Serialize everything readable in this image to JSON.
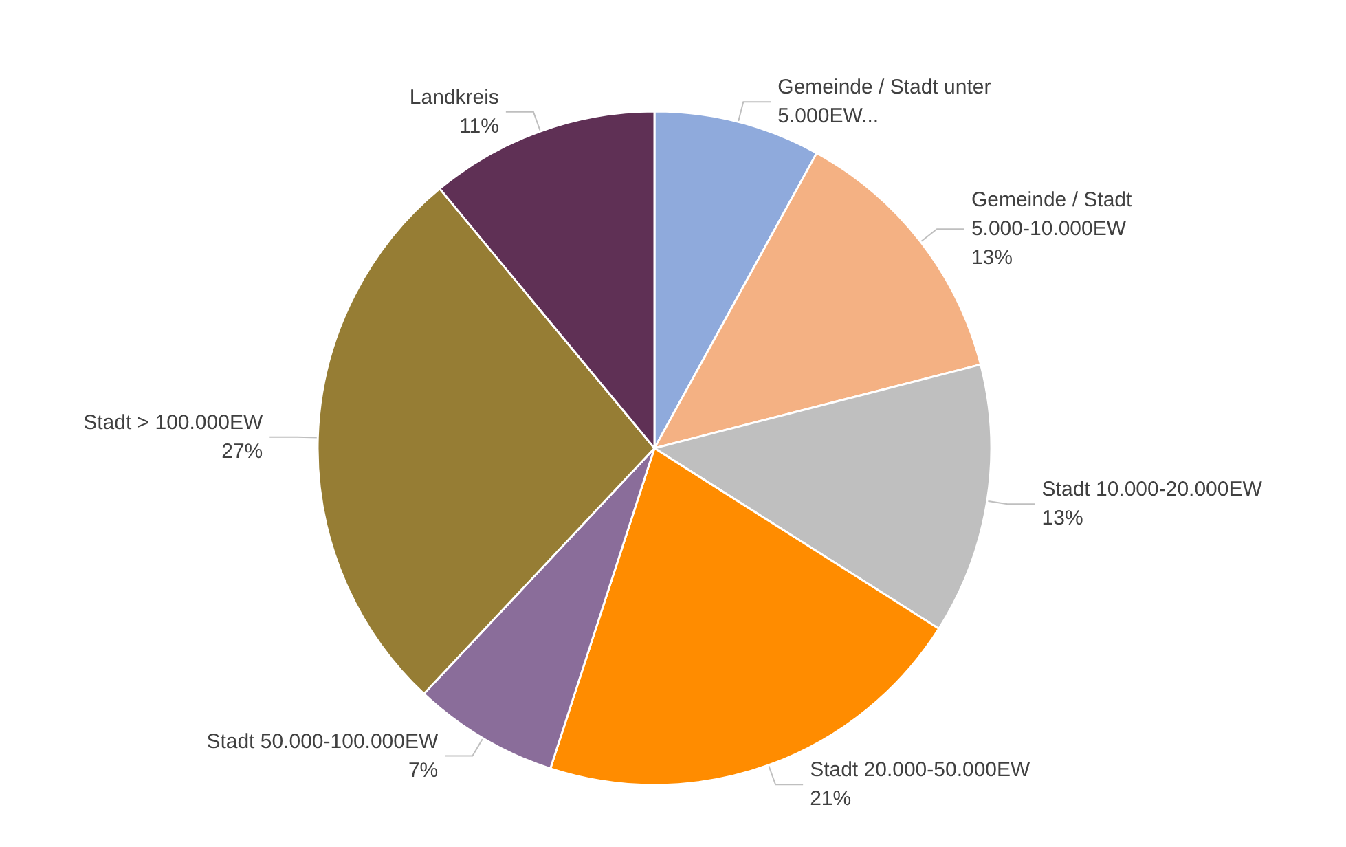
{
  "chart_data": {
    "type": "pie",
    "categories": [
      "Gemeinde / Stadt unter 5.000EW...",
      "Gemeinde / Stadt 5.000-10.000EW",
      "Stadt 10.000-20.000EW",
      "Stadt 20.000-50.000EW",
      "Stadt 50.000-100.000EW",
      "Stadt > 100.000EW",
      "Landkreis"
    ],
    "values": [
      8,
      13,
      13,
      21,
      7,
      27,
      11
    ],
    "value_labels": [
      null,
      "13%",
      "13%",
      "21%",
      "7%",
      "27%",
      "11%"
    ],
    "colors": [
      "#8faadc",
      "#f4b183",
      "#bfbfbf",
      "#ff8c00",
      "#8a6d9a",
      "#967d34",
      "#5f3055"
    ],
    "legend": false
  }
}
